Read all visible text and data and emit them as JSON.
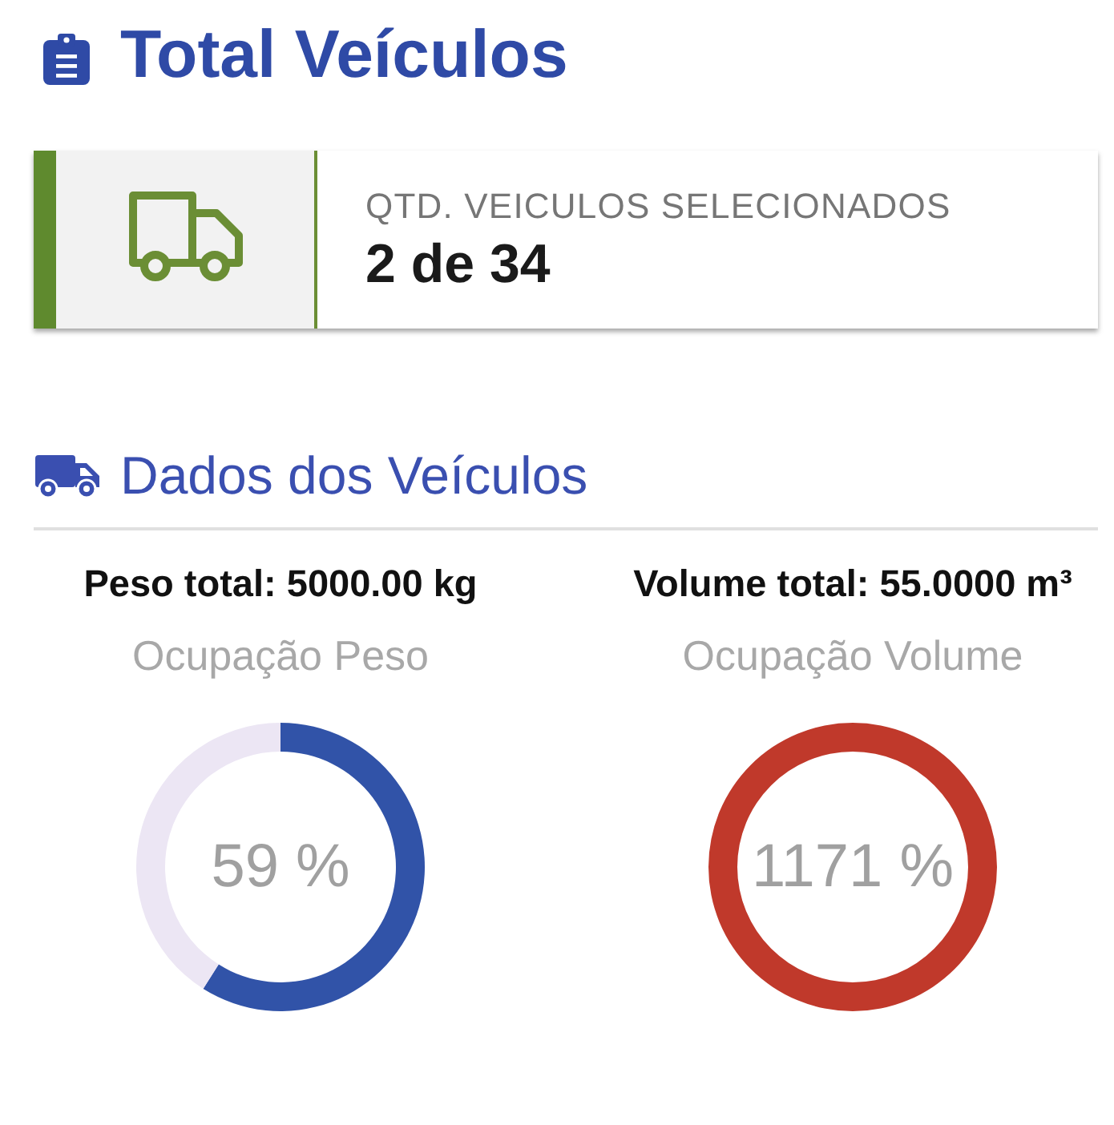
{
  "chart_data": [
    {
      "type": "other",
      "title": "Total Veículos",
      "annotations": [
        "QTD. VEICULOS SELECIONADOS",
        "2 de 34"
      ]
    },
    {
      "type": "other",
      "title": "Dados dos Veículos"
    },
    {
      "type": "donut",
      "title": "Peso total: 5000.00 kg",
      "subtitle": "Ocupação Peso",
      "categories": [
        null,
        null
      ],
      "values": [
        59,
        41
      ],
      "colors": [
        "#3153a8",
        "#ece6f4"
      ],
      "annotations": [
        "59 %"
      ]
    },
    {
      "type": "donut",
      "title": "Volume total: 55.0000 m³",
      "subtitle": "Ocupação Volume",
      "categories": [
        null
      ],
      "values": [
        1171
      ],
      "colors": [
        "#c0392b"
      ],
      "value_labels": [
        "1171 %"
      ]
    }
  ]
}
